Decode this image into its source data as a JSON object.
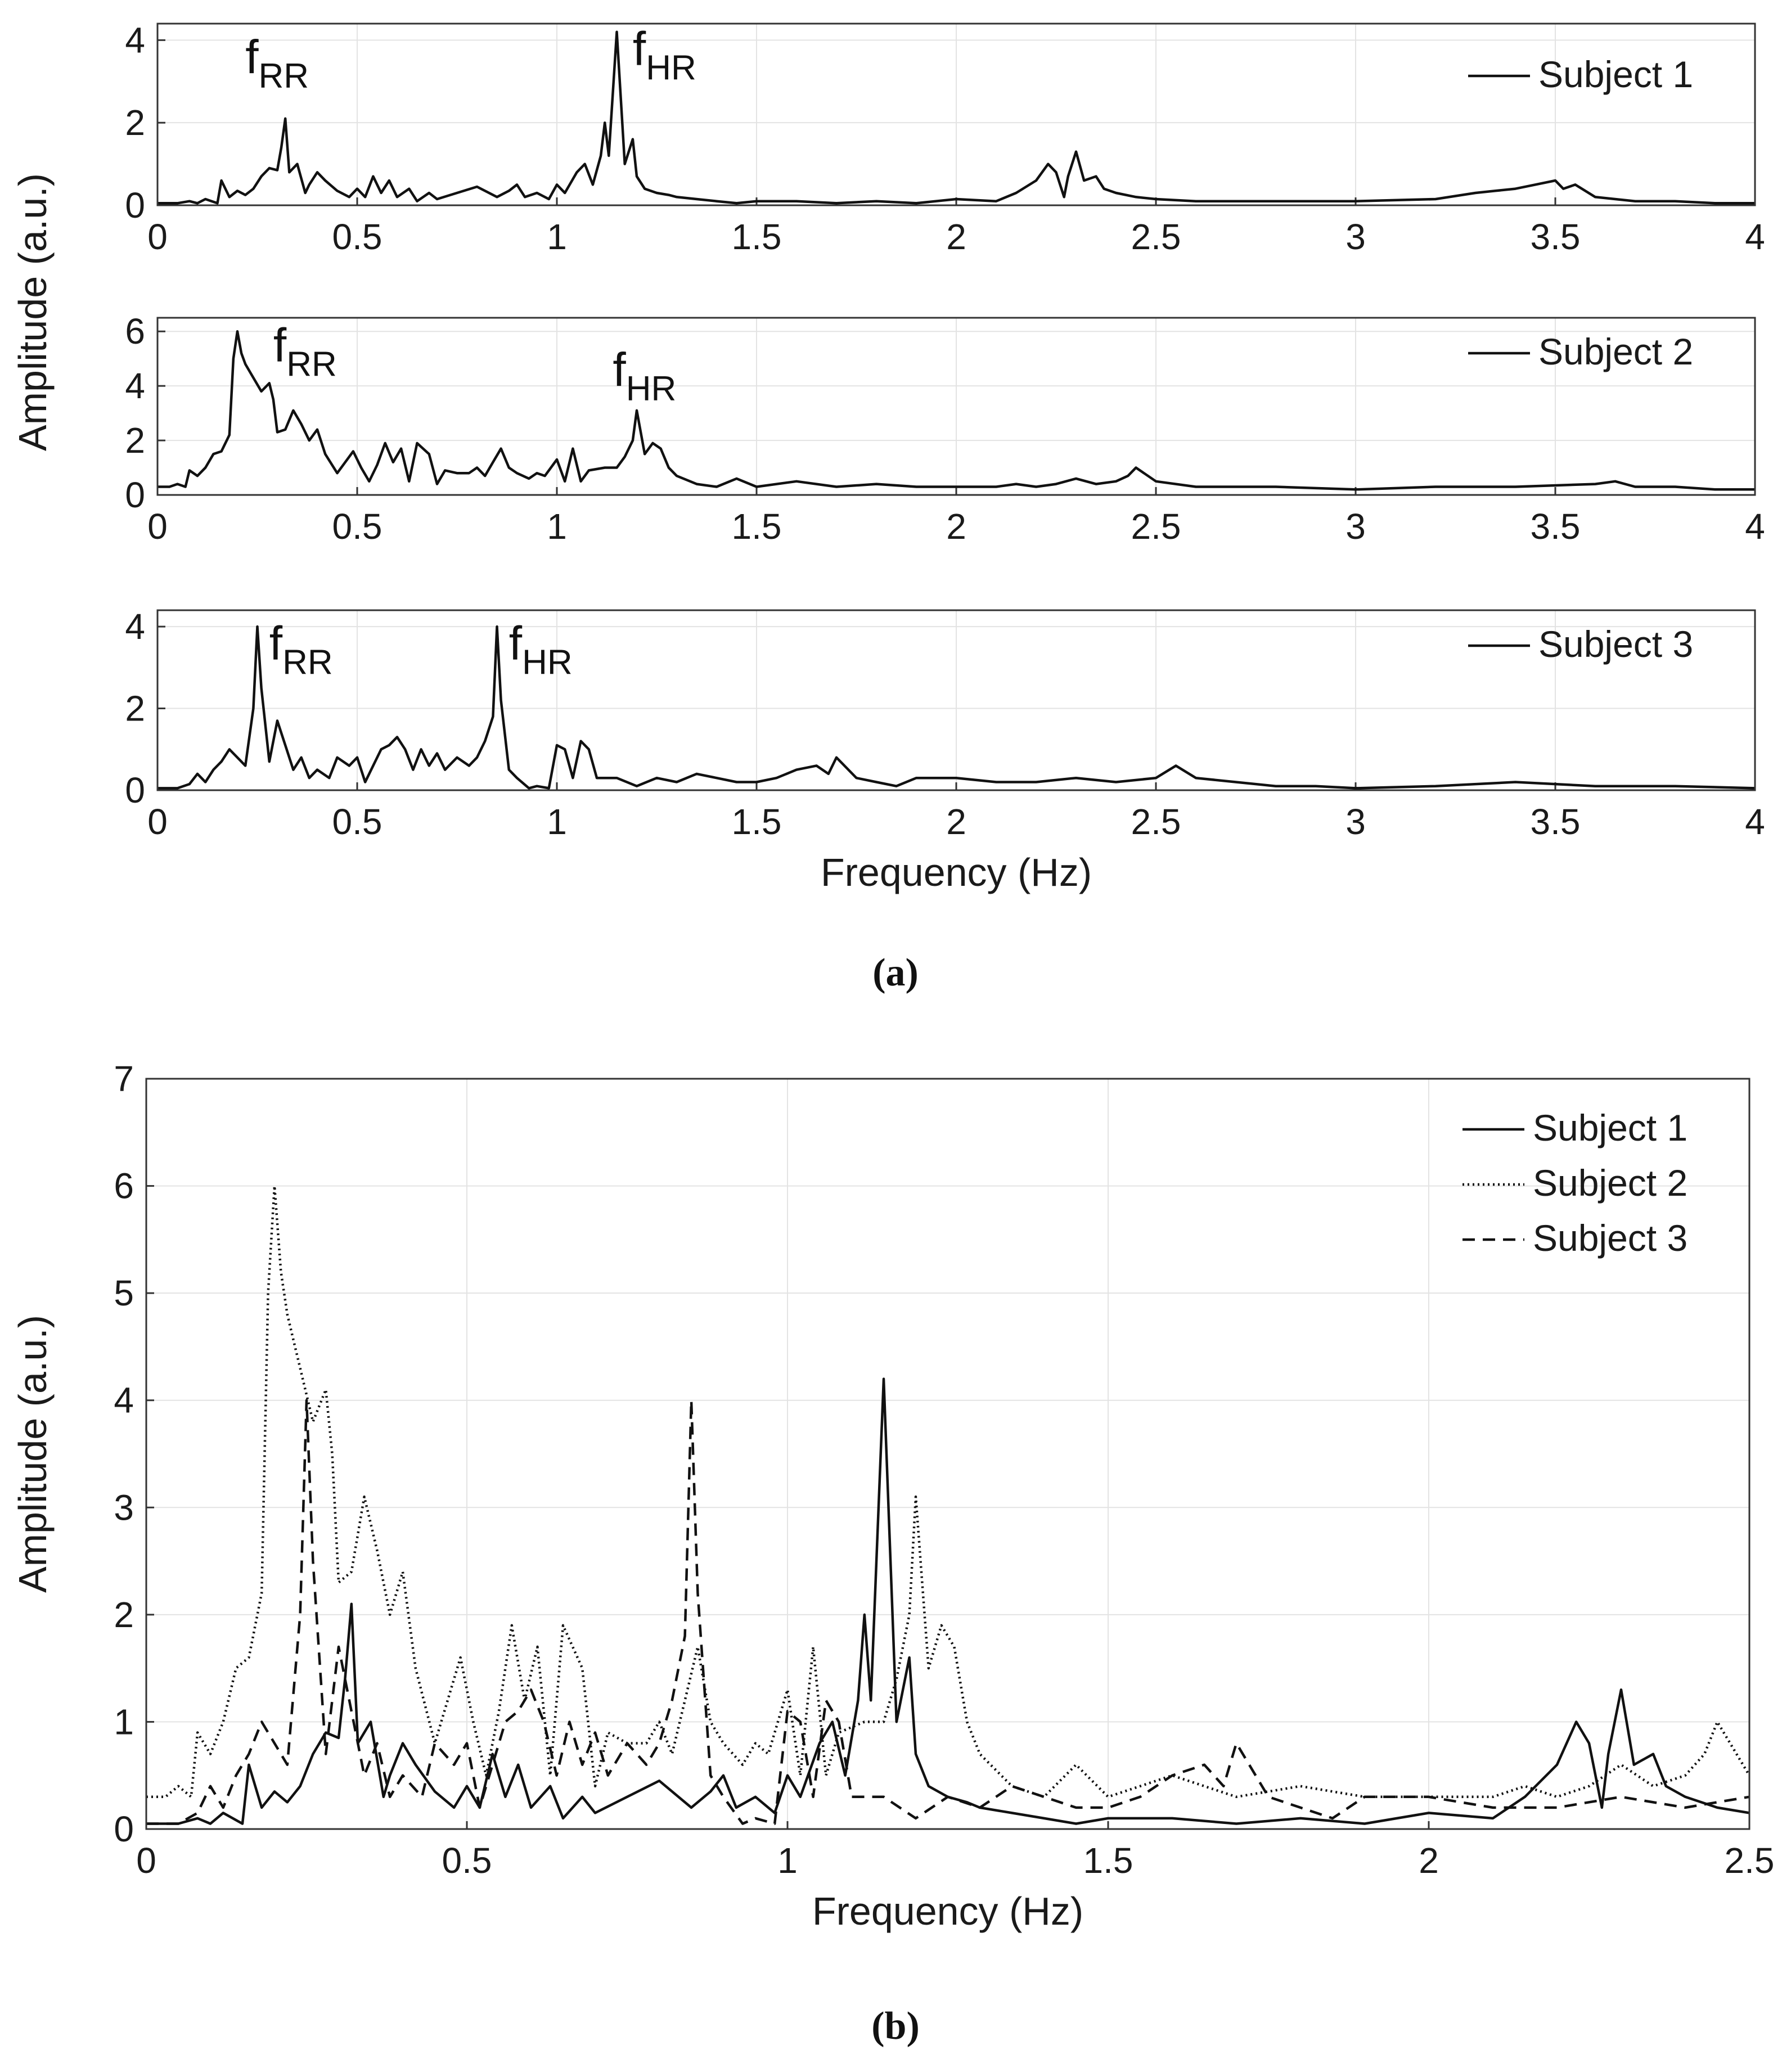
{
  "figure_captions": [
    "(a)",
    "(b)"
  ],
  "chart_data": [
    {
      "id": "a1",
      "type": "line",
      "panel_caption": "a",
      "xlim": [
        0,
        4
      ],
      "ylim": [
        0,
        4.4
      ],
      "xticks": [
        "0",
        "0.5",
        "1",
        "1.5",
        "2",
        "2.5",
        "3",
        "3.5",
        "4"
      ],
      "yticks": [
        "0",
        "2",
        "4"
      ],
      "xlabel": "",
      "ylabel": "Amplitude (a.u.)",
      "legend_position": "top-right",
      "series": [
        {
          "name": "Subject 1",
          "style": "solid",
          "x": [
            0,
            0.05,
            0.08,
            0.1,
            0.12,
            0.15,
            0.16,
            0.18,
            0.2,
            0.22,
            0.24,
            0.26,
            0.28,
            0.3,
            0.31,
            0.32,
            0.33,
            0.35,
            0.37,
            0.38,
            0.4,
            0.42,
            0.45,
            0.48,
            0.5,
            0.52,
            0.54,
            0.56,
            0.58,
            0.6,
            0.63,
            0.65,
            0.68,
            0.7,
            0.75,
            0.8,
            0.85,
            0.88,
            0.9,
            0.92,
            0.95,
            0.98,
            1.0,
            1.02,
            1.05,
            1.07,
            1.09,
            1.11,
            1.12,
            1.13,
            1.15,
            1.17,
            1.19,
            1.2,
            1.22,
            1.25,
            1.28,
            1.3,
            1.35,
            1.4,
            1.45,
            1.5,
            1.6,
            1.7,
            1.8,
            1.9,
            2.0,
            2.1,
            2.15,
            2.2,
            2.23,
            2.25,
            2.27,
            2.28,
            2.3,
            2.32,
            2.35,
            2.37,
            2.4,
            2.45,
            2.5,
            2.6,
            2.8,
            3.0,
            3.2,
            3.3,
            3.35,
            3.4,
            3.45,
            3.5,
            3.52,
            3.55,
            3.6,
            3.7,
            3.8,
            3.9,
            4.0
          ],
          "y": [
            0.05,
            0.05,
            0.1,
            0.05,
            0.15,
            0.05,
            0.6,
            0.2,
            0.35,
            0.25,
            0.4,
            0.7,
            0.9,
            0.85,
            1.4,
            2.1,
            0.8,
            1.0,
            0.3,
            0.5,
            0.8,
            0.6,
            0.35,
            0.2,
            0.4,
            0.2,
            0.7,
            0.3,
            0.6,
            0.2,
            0.4,
            0.1,
            0.3,
            0.15,
            0.3,
            0.45,
            0.2,
            0.35,
            0.5,
            0.2,
            0.3,
            0.15,
            0.5,
            0.3,
            0.8,
            1.0,
            0.5,
            1.2,
            2.0,
            1.2,
            4.2,
            1.0,
            1.6,
            0.7,
            0.4,
            0.3,
            0.25,
            0.2,
            0.15,
            0.1,
            0.05,
            0.1,
            0.1,
            0.05,
            0.1,
            0.05,
            0.15,
            0.1,
            0.3,
            0.6,
            1.0,
            0.8,
            0.2,
            0.7,
            1.3,
            0.6,
            0.7,
            0.4,
            0.3,
            0.2,
            0.15,
            0.1,
            0.1,
            0.1,
            0.15,
            0.3,
            0.35,
            0.4,
            0.5,
            0.6,
            0.4,
            0.5,
            0.2,
            0.1,
            0.1,
            0.05,
            0.05
          ]
        }
      ],
      "annotations": [
        {
          "main": "f",
          "sub": "RR",
          "x": 0.22,
          "y": 3.2
        },
        {
          "main": "f",
          "sub": "HR",
          "x": 1.19,
          "y": 3.4
        }
      ]
    },
    {
      "id": "a2",
      "type": "line",
      "panel_caption": "a",
      "xlim": [
        0,
        4
      ],
      "ylim": [
        0,
        6.5
      ],
      "xticks": [
        "0",
        "0.5",
        "1",
        "1.5",
        "2",
        "2.5",
        "3",
        "3.5",
        "4"
      ],
      "yticks": [
        "0",
        "2",
        "4",
        "6"
      ],
      "xlabel": "",
      "ylabel": "Amplitude (a.u.)",
      "legend_position": "top-right",
      "series": [
        {
          "name": "Subject 2",
          "style": "dotted",
          "x": [
            0,
            0.03,
            0.05,
            0.07,
            0.08,
            0.1,
            0.12,
            0.14,
            0.16,
            0.18,
            0.19,
            0.2,
            0.21,
            0.22,
            0.24,
            0.26,
            0.28,
            0.29,
            0.3,
            0.32,
            0.34,
            0.36,
            0.38,
            0.4,
            0.42,
            0.45,
            0.47,
            0.49,
            0.51,
            0.53,
            0.55,
            0.57,
            0.59,
            0.61,
            0.63,
            0.65,
            0.68,
            0.7,
            0.72,
            0.75,
            0.78,
            0.8,
            0.82,
            0.84,
            0.86,
            0.88,
            0.9,
            0.93,
            0.95,
            0.97,
            1.0,
            1.02,
            1.04,
            1.06,
            1.08,
            1.12,
            1.15,
            1.17,
            1.19,
            1.2,
            1.22,
            1.24,
            1.26,
            1.28,
            1.3,
            1.35,
            1.4,
            1.45,
            1.5,
            1.6,
            1.7,
            1.8,
            1.9,
            2.0,
            2.1,
            2.15,
            2.2,
            2.25,
            2.3,
            2.35,
            2.4,
            2.43,
            2.45,
            2.5,
            2.6,
            2.8,
            3.0,
            3.2,
            3.4,
            3.6,
            3.65,
            3.7,
            3.8,
            3.9,
            4.0
          ],
          "y": [
            0.3,
            0.3,
            0.4,
            0.3,
            0.9,
            0.7,
            1.0,
            1.5,
            1.6,
            2.2,
            5.0,
            6.0,
            5.2,
            4.8,
            4.3,
            3.8,
            4.1,
            3.5,
            2.3,
            2.4,
            3.1,
            2.6,
            2.0,
            2.4,
            1.5,
            0.8,
            1.2,
            1.6,
            1.0,
            0.5,
            1.1,
            1.9,
            1.2,
            1.7,
            0.5,
            1.9,
            1.5,
            0.4,
            0.9,
            0.8,
            0.8,
            1.0,
            0.7,
            1.2,
            1.7,
            1.0,
            0.8,
            0.6,
            0.8,
            0.7,
            1.3,
            0.5,
            1.7,
            0.5,
            0.9,
            1.0,
            1.0,
            1.4,
            2.0,
            3.1,
            1.5,
            1.9,
            1.7,
            1.0,
            0.7,
            0.4,
            0.3,
            0.6,
            0.3,
            0.5,
            0.3,
            0.4,
            0.3,
            0.3,
            0.3,
            0.4,
            0.3,
            0.4,
            0.6,
            0.4,
            0.5,
            0.7,
            1.0,
            0.5,
            0.3,
            0.3,
            0.2,
            0.3,
            0.3,
            0.4,
            0.5,
            0.3,
            0.3,
            0.2,
            0.2
          ]
        }
      ],
      "annotations": [
        {
          "main": "f",
          "sub": "RR",
          "x": 0.29,
          "y": 4.9
        },
        {
          "main": "f",
          "sub": "HR",
          "x": 1.14,
          "y": 4.0
        }
      ]
    },
    {
      "id": "a3",
      "type": "line",
      "panel_caption": "a",
      "xlim": [
        0,
        4
      ],
      "ylim": [
        0,
        4.4
      ],
      "xticks": [
        "0",
        "0.5",
        "1",
        "1.5",
        "2",
        "2.5",
        "3",
        "3.5",
        "4"
      ],
      "yticks": [
        "0",
        "2",
        "4"
      ],
      "xlabel": "Frequency (Hz)",
      "ylabel": "Amplitude (a.u.)",
      "legend_position": "top-right",
      "series": [
        {
          "name": "Subject 3",
          "style": "dashed",
          "x": [
            0,
            0.05,
            0.08,
            0.1,
            0.12,
            0.14,
            0.16,
            0.18,
            0.2,
            0.22,
            0.24,
            0.25,
            0.26,
            0.28,
            0.3,
            0.32,
            0.34,
            0.36,
            0.38,
            0.4,
            0.43,
            0.45,
            0.48,
            0.5,
            0.52,
            0.54,
            0.56,
            0.58,
            0.6,
            0.62,
            0.64,
            0.66,
            0.68,
            0.7,
            0.72,
            0.75,
            0.78,
            0.8,
            0.82,
            0.84,
            0.85,
            0.86,
            0.88,
            0.9,
            0.93,
            0.95,
            0.98,
            1.0,
            1.02,
            1.04,
            1.06,
            1.08,
            1.1,
            1.15,
            1.2,
            1.25,
            1.3,
            1.35,
            1.4,
            1.45,
            1.5,
            1.55,
            1.6,
            1.65,
            1.68,
            1.7,
            1.75,
            1.8,
            1.85,
            1.9,
            2.0,
            2.1,
            2.2,
            2.3,
            2.4,
            2.5,
            2.55,
            2.6,
            2.7,
            2.8,
            2.9,
            3.0,
            3.2,
            3.4,
            3.6,
            3.8,
            4.0
          ],
          "y": [
            0.05,
            0.05,
            0.15,
            0.4,
            0.2,
            0.5,
            0.7,
            1.0,
            0.8,
            0.6,
            2.0,
            4.0,
            2.5,
            0.7,
            1.7,
            1.1,
            0.5,
            0.8,
            0.3,
            0.5,
            0.3,
            0.8,
            0.6,
            0.8,
            0.2,
            0.6,
            1.0,
            1.1,
            1.3,
            1.0,
            0.5,
            1.0,
            0.6,
            0.9,
            0.5,
            0.8,
            0.6,
            0.8,
            1.2,
            1.8,
            4.0,
            2.2,
            0.5,
            0.3,
            0.05,
            0.1,
            0.05,
            1.1,
            1.0,
            0.3,
            1.2,
            1.0,
            0.3,
            0.3,
            0.1,
            0.3,
            0.2,
            0.4,
            0.3,
            0.2,
            0.2,
            0.3,
            0.5,
            0.6,
            0.4,
            0.8,
            0.3,
            0.2,
            0.1,
            0.3,
            0.3,
            0.2,
            0.2,
            0.3,
            0.2,
            0.3,
            0.6,
            0.3,
            0.2,
            0.1,
            0.1,
            0.05,
            0.1,
            0.2,
            0.1,
            0.1,
            0.05
          ]
        }
      ],
      "annotations": [
        {
          "main": "f",
          "sub": "RR",
          "x": 0.28,
          "y": 3.2
        },
        {
          "main": "f",
          "sub": "HR",
          "x": 0.88,
          "y": 3.2
        }
      ]
    },
    {
      "id": "b",
      "type": "line",
      "panel_caption": "b",
      "xlim": [
        0,
        2.5
      ],
      "ylim": [
        0,
        7
      ],
      "xticks": [
        "0",
        "0.5",
        "1",
        "1.5",
        "2",
        "2.5"
      ],
      "yticks": [
        "0",
        "1",
        "2",
        "3",
        "4",
        "5",
        "6",
        "7"
      ],
      "xlabel": "Frequency (Hz)",
      "ylabel": "Amplitude (a.u.)",
      "legend_position": "top-right",
      "series_refs": [
        "Subject 1",
        "Subject 2",
        "Subject 3"
      ]
    }
  ]
}
